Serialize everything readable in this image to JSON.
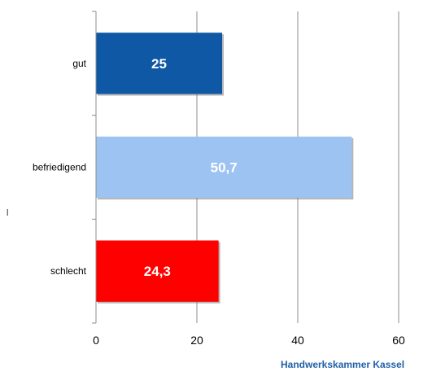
{
  "chart_data": {
    "type": "bar",
    "orientation": "horizontal",
    "categories": [
      "gut",
      "befriedigend",
      "schlecht"
    ],
    "values": [
      25,
      50.7,
      24.3
    ],
    "value_labels": [
      "25",
      "50,7",
      "24,3"
    ],
    "bar_colors": [
      "#0f58a6",
      "#9dc3f2",
      "#ff0000"
    ],
    "xlim": [
      0,
      60
    ],
    "x_ticks": [
      0,
      20,
      40,
      60
    ],
    "x_tick_labels": [
      "0",
      "20",
      "40",
      "60"
    ],
    "grid": "vertical",
    "legend": "none",
    "title": "",
    "xlabel": "",
    "ylabel": ""
  },
  "axis_marker": "l",
  "footer": {
    "credit": "Handwerkskammer Kassel"
  }
}
